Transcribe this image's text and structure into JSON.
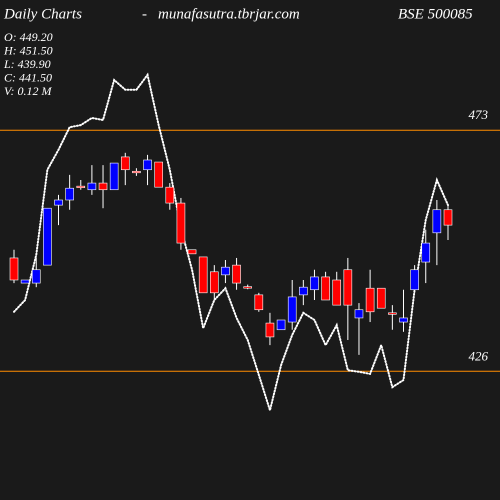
{
  "chart_data": {
    "type": "candlestick",
    "title": "Daily Charts",
    "separator": "-",
    "site": "munafasutra.tbrjar.com",
    "symbol": "BSE 500085",
    "info": [
      "O: 449.20",
      "H: 451.50",
      "L: 439.90",
      "C: 441.50",
      "V: 0.12 M"
    ],
    "ylim": [
      400.9,
      498.4
    ],
    "up_color": "#0000ff",
    "down_color": "#ff0000",
    "wick_color": "#ffffff",
    "open": [
      448.1,
      443.2,
      443.2,
      446.7,
      458.4,
      459.4,
      462.1,
      461.4,
      462.7,
      461.4,
      467.8,
      465.0,
      465.3,
      466.8,
      461.9,
      458.8,
      449.7,
      448.3,
      445.4,
      444.8,
      446.7,
      442.5,
      440.9,
      435.4,
      434.1,
      435.6,
      440.9,
      441.9,
      444.4,
      443.8,
      445.8,
      436.4,
      442.2,
      442.2,
      437.4,
      435.6,
      441.9,
      447.3,
      453.0,
      457.5
    ],
    "high": [
      449.7,
      443.8,
      448.1,
      457.8,
      460.4,
      464.3,
      463.3,
      466.2,
      466.2,
      466.6,
      468.6,
      465.6,
      468.2,
      466.8,
      462.7,
      459.8,
      449.7,
      448.3,
      446.7,
      447.7,
      448.1,
      442.9,
      441.3,
      437.4,
      436.0,
      443.8,
      443.8,
      445.8,
      445.4,
      445.4,
      448.1,
      439.3,
      445.8,
      442.2,
      438.9,
      441.9,
      446.7,
      453.6,
      459.4,
      458.4
    ],
    "low": [
      443.2,
      443.2,
      442.4,
      446.7,
      454.5,
      457.5,
      461.4,
      460.4,
      457.8,
      461.4,
      462.3,
      464.1,
      462.3,
      461.9,
      457.5,
      449.7,
      448.9,
      441.3,
      439.9,
      443.2,
      441.9,
      442.0,
      437.6,
      431.1,
      434.1,
      434.1,
      438.9,
      439.9,
      439.9,
      438.9,
      432.1,
      429.2,
      435.6,
      438.3,
      434.1,
      433.7,
      441.3,
      443.2,
      446.7,
      451.6
    ],
    "close": [
      443.8,
      443.8,
      445.8,
      457.8,
      459.4,
      461.7,
      461.9,
      462.7,
      461.4,
      466.6,
      465.3,
      464.9,
      467.2,
      461.9,
      458.8,
      451.0,
      448.9,
      441.3,
      441.3,
      446.3,
      443.2,
      442.4,
      438.0,
      432.7,
      436.0,
      440.5,
      442.4,
      444.4,
      439.9,
      438.9,
      438.9,
      438.0,
      437.6,
      438.3,
      437.2,
      436.4,
      445.8,
      451.0,
      457.5,
      454.5
    ],
    "line": {
      "color": "#ffffff",
      "style": "dotted",
      "values": [
        437.6,
        439.9,
        448.7,
        465.3,
        469.2,
        473.6,
        474.0,
        475.4,
        475.0,
        482.8,
        480.9,
        480.9,
        483.8,
        474.0,
        465.3,
        453.9,
        445.8,
        434.4,
        439.9,
        442.2,
        436.4,
        432.1,
        425.3,
        418.4,
        427.2,
        433.1,
        437.4,
        436.0,
        431.1,
        435.0,
        426.2,
        425.9,
        425.5,
        431.1,
        422.9,
        424.3,
        441.9,
        455.5,
        463.3,
        458.4
      ]
    },
    "levels": [
      473,
      426
    ],
    "level_color": "#ff8c00"
  }
}
